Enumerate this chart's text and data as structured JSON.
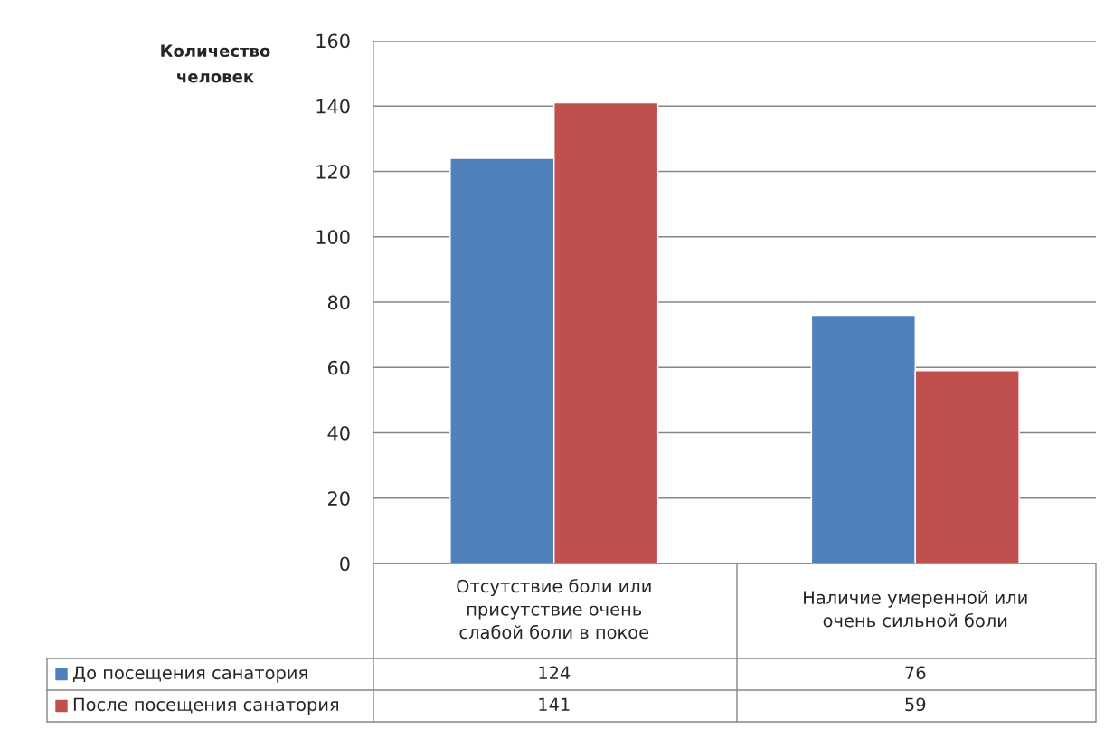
{
  "chart_data": {
    "type": "bar",
    "ylabel": "Количество\nчеловек",
    "categories": [
      "Отсутствие боли или\nприсутствие очень\nслабой боли в покое",
      "Наличие умеренной или\nочень сильной боли"
    ],
    "series": [
      {
        "name": "До посещения санатория",
        "color": "#4f81bd",
        "values": [
          124,
          76
        ]
      },
      {
        "name": "После посещения санатория",
        "color": "#c0504d",
        "values": [
          141,
          59
        ]
      }
    ],
    "ylim": [
      0,
      160
    ],
    "yticks": [
      0,
      20,
      40,
      60,
      80,
      100,
      120,
      140,
      160
    ],
    "grid": "y",
    "data_labels": true,
    "legend": "bottom"
  }
}
